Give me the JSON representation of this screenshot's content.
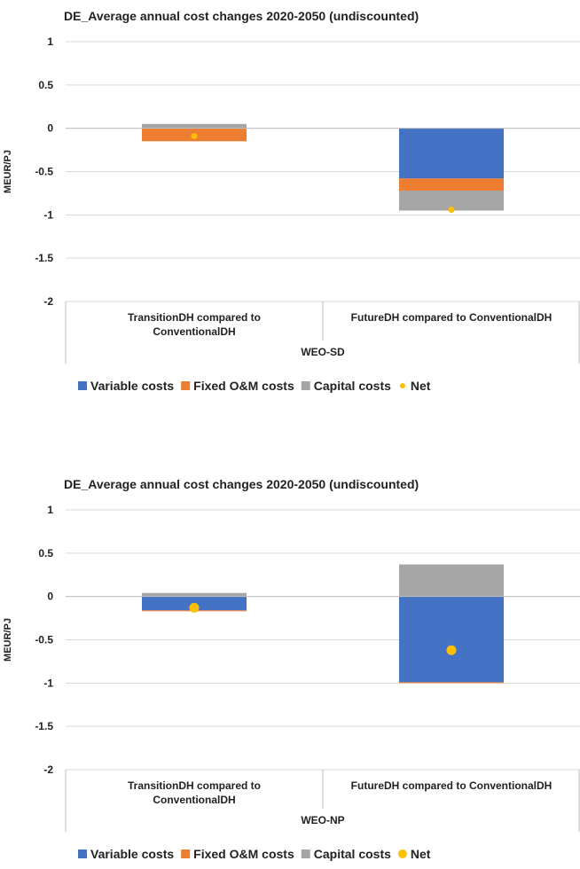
{
  "colors": {
    "variable": "#4472C4",
    "fixed": "#ED7D31",
    "capital": "#A5A5A5",
    "net": "#FFC000",
    "grid": "#D9D9D9",
    "axis": "#BFBFBF"
  },
  "chart_data": [
    {
      "type": "bar",
      "stacked": true,
      "title": "DE_Average  annual cost changes 2020-2050 (undiscounted)",
      "ylabel": "MEUR/PJ",
      "ylim": [
        -2,
        1
      ],
      "yticks": [
        "1",
        "0.5",
        "0",
        "-0.5",
        "-1",
        "-1.5",
        "-2"
      ],
      "categories": [
        [
          "TransitionDH compared to",
          "ConventionalDH"
        ],
        [
          "FutureDH compared to ConventionalDH"
        ]
      ],
      "group_label": "WEO-SD",
      "series": [
        {
          "name": "Variable costs",
          "values": [
            0.0,
            -0.58
          ]
        },
        {
          "name": "Fixed O&M costs",
          "values": [
            -0.15,
            -0.14
          ]
        },
        {
          "name": "Capital costs",
          "values": [
            0.05,
            -0.23
          ]
        }
      ],
      "net": {
        "name": "Net",
        "values": [
          -0.09,
          -0.94
        ]
      },
      "legend": [
        "Variable costs",
        "Fixed O&M costs",
        "Capital costs",
        "Net"
      ],
      "legend_position": "bottom",
      "grid": true
    },
    {
      "type": "bar",
      "stacked": true,
      "title": "DE_Average  annual cost changes 2020-2050 (undiscounted)",
      "ylabel": "MEUR/PJ",
      "ylim": [
        -2,
        1
      ],
      "yticks": [
        "1",
        "0.5",
        "0",
        "-0.5",
        "-1",
        "-1.5",
        "-2"
      ],
      "categories": [
        [
          "TransitionDH compared to",
          "ConventionalDH"
        ],
        [
          "FutureDH compared to ConventionalDH"
        ]
      ],
      "group_label": "WEO-NP",
      "series": [
        {
          "name": "Variable costs",
          "values": [
            -0.16,
            -0.99
          ]
        },
        {
          "name": "Fixed O&M costs",
          "values": [
            -0.01,
            -0.005
          ]
        },
        {
          "name": "Capital costs",
          "values": [
            0.04,
            0.37
          ]
        }
      ],
      "net": {
        "name": "Net",
        "values": [
          -0.13,
          -0.62
        ]
      },
      "legend": [
        "Variable costs",
        "Fixed O&M costs",
        "Capital costs",
        "Net"
      ],
      "legend_position": "bottom",
      "grid": true
    }
  ]
}
